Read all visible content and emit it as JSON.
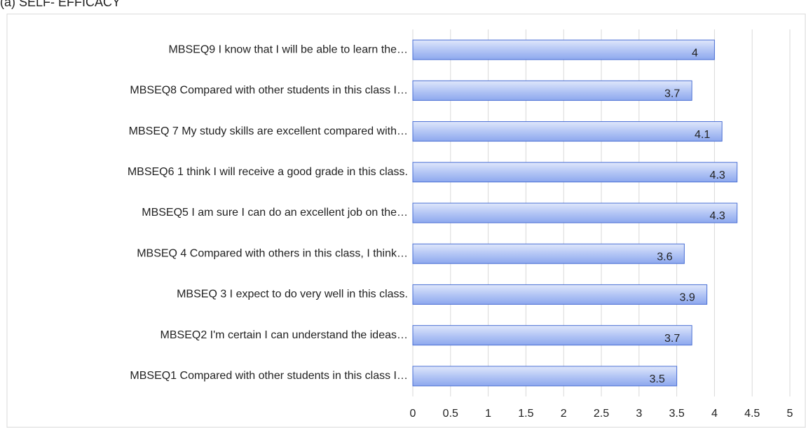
{
  "chart_data": {
    "type": "bar",
    "orientation": "horizontal",
    "title": "(a) SELF- EFFICACY",
    "categories": [
      "MBSEQ9 I know that I will be able to learn the…",
      "MBSEQ8 Compared with other students in this class I…",
      "MBSEQ 7 My study skills are excellent compared with…",
      "MBSEQ6 1 think I will receive a good grade in this class.",
      "MBSEQ5 I am sure I can do an excellent job on the…",
      "MBSEQ 4 Compared with others in this class, I think…",
      "MBSEQ 3 I expect to do very well in this class.",
      "MBSEQ2 I'm certain I can understand the ideas…",
      "MBSEQ1 Compared with other students in this class I…"
    ],
    "values": [
      4,
      3.7,
      4.1,
      4.3,
      4.3,
      3.6,
      3.9,
      3.7,
      3.5
    ],
    "color": "#9fb6f2",
    "xlim": [
      0,
      5
    ],
    "xticks": [
      0,
      0.5,
      1,
      1.5,
      2,
      2.5,
      3,
      3.5,
      4,
      4.5,
      5
    ],
    "grid": true
  }
}
